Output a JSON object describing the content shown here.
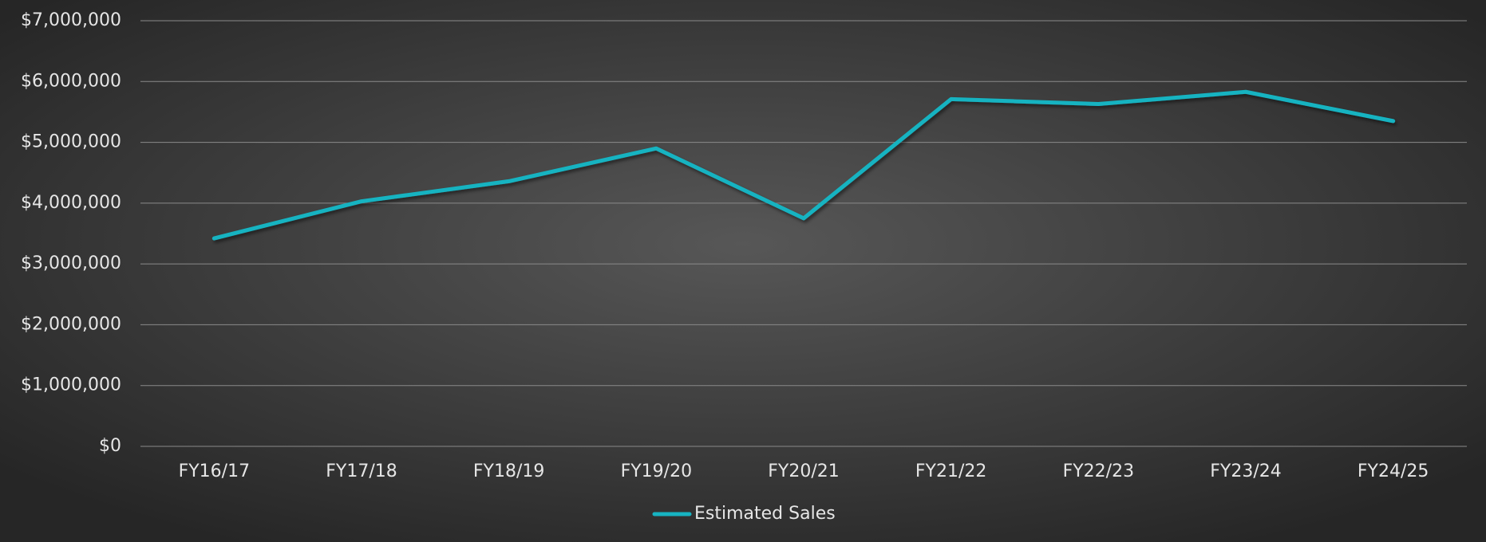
{
  "chart_data": {
    "type": "line",
    "categories": [
      "FY16/17",
      "FY17/18",
      "FY18/19",
      "FY19/20",
      "FY20/21",
      "FY21/22",
      "FY22/23",
      "FY23/24",
      "FY24/25"
    ],
    "series": [
      {
        "name": "Estimated Sales",
        "color": "#17b3c1",
        "values": [
          3420000,
          4030000,
          4360000,
          4900000,
          3750000,
          5710000,
          5630000,
          5830000,
          5350000
        ]
      }
    ],
    "ylim": [
      0,
      7000000
    ],
    "yticks": [
      {
        "value": 0,
        "label": "$0"
      },
      {
        "value": 1000000,
        "label": "$1,000,000"
      },
      {
        "value": 2000000,
        "label": "$2,000,000"
      },
      {
        "value": 3000000,
        "label": "$3,000,000"
      },
      {
        "value": 4000000,
        "label": "$4,000,000"
      },
      {
        "value": 5000000,
        "label": "$5,000,000"
      },
      {
        "value": 6000000,
        "label": "$6,000,000"
      },
      {
        "value": 7000000,
        "label": "$7,000,000"
      }
    ],
    "grid": true,
    "legend": "bottom"
  }
}
